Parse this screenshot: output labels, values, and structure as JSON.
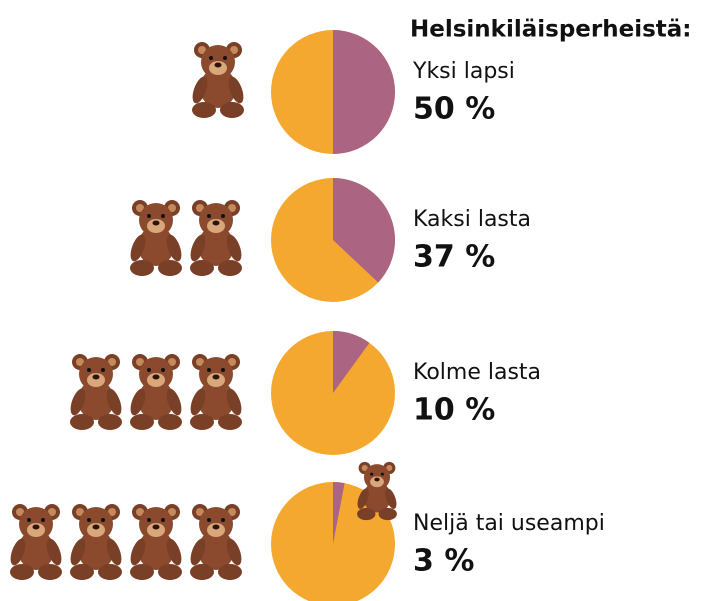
{
  "chart_data": {
    "type": "pie",
    "title": "Helsinkiläisperheistä:",
    "categories": [
      "Yksi lapsi",
      "Kaksi lasta",
      "Kolme lasta",
      "Neljä tai useampi"
    ],
    "values": [
      50,
      37,
      10,
      3
    ],
    "value_labels": [
      "50 %",
      "37 %",
      "10 %",
      "3 %"
    ],
    "colors": [
      "#ab6482",
      "#f5a82f"
    ]
  }
}
